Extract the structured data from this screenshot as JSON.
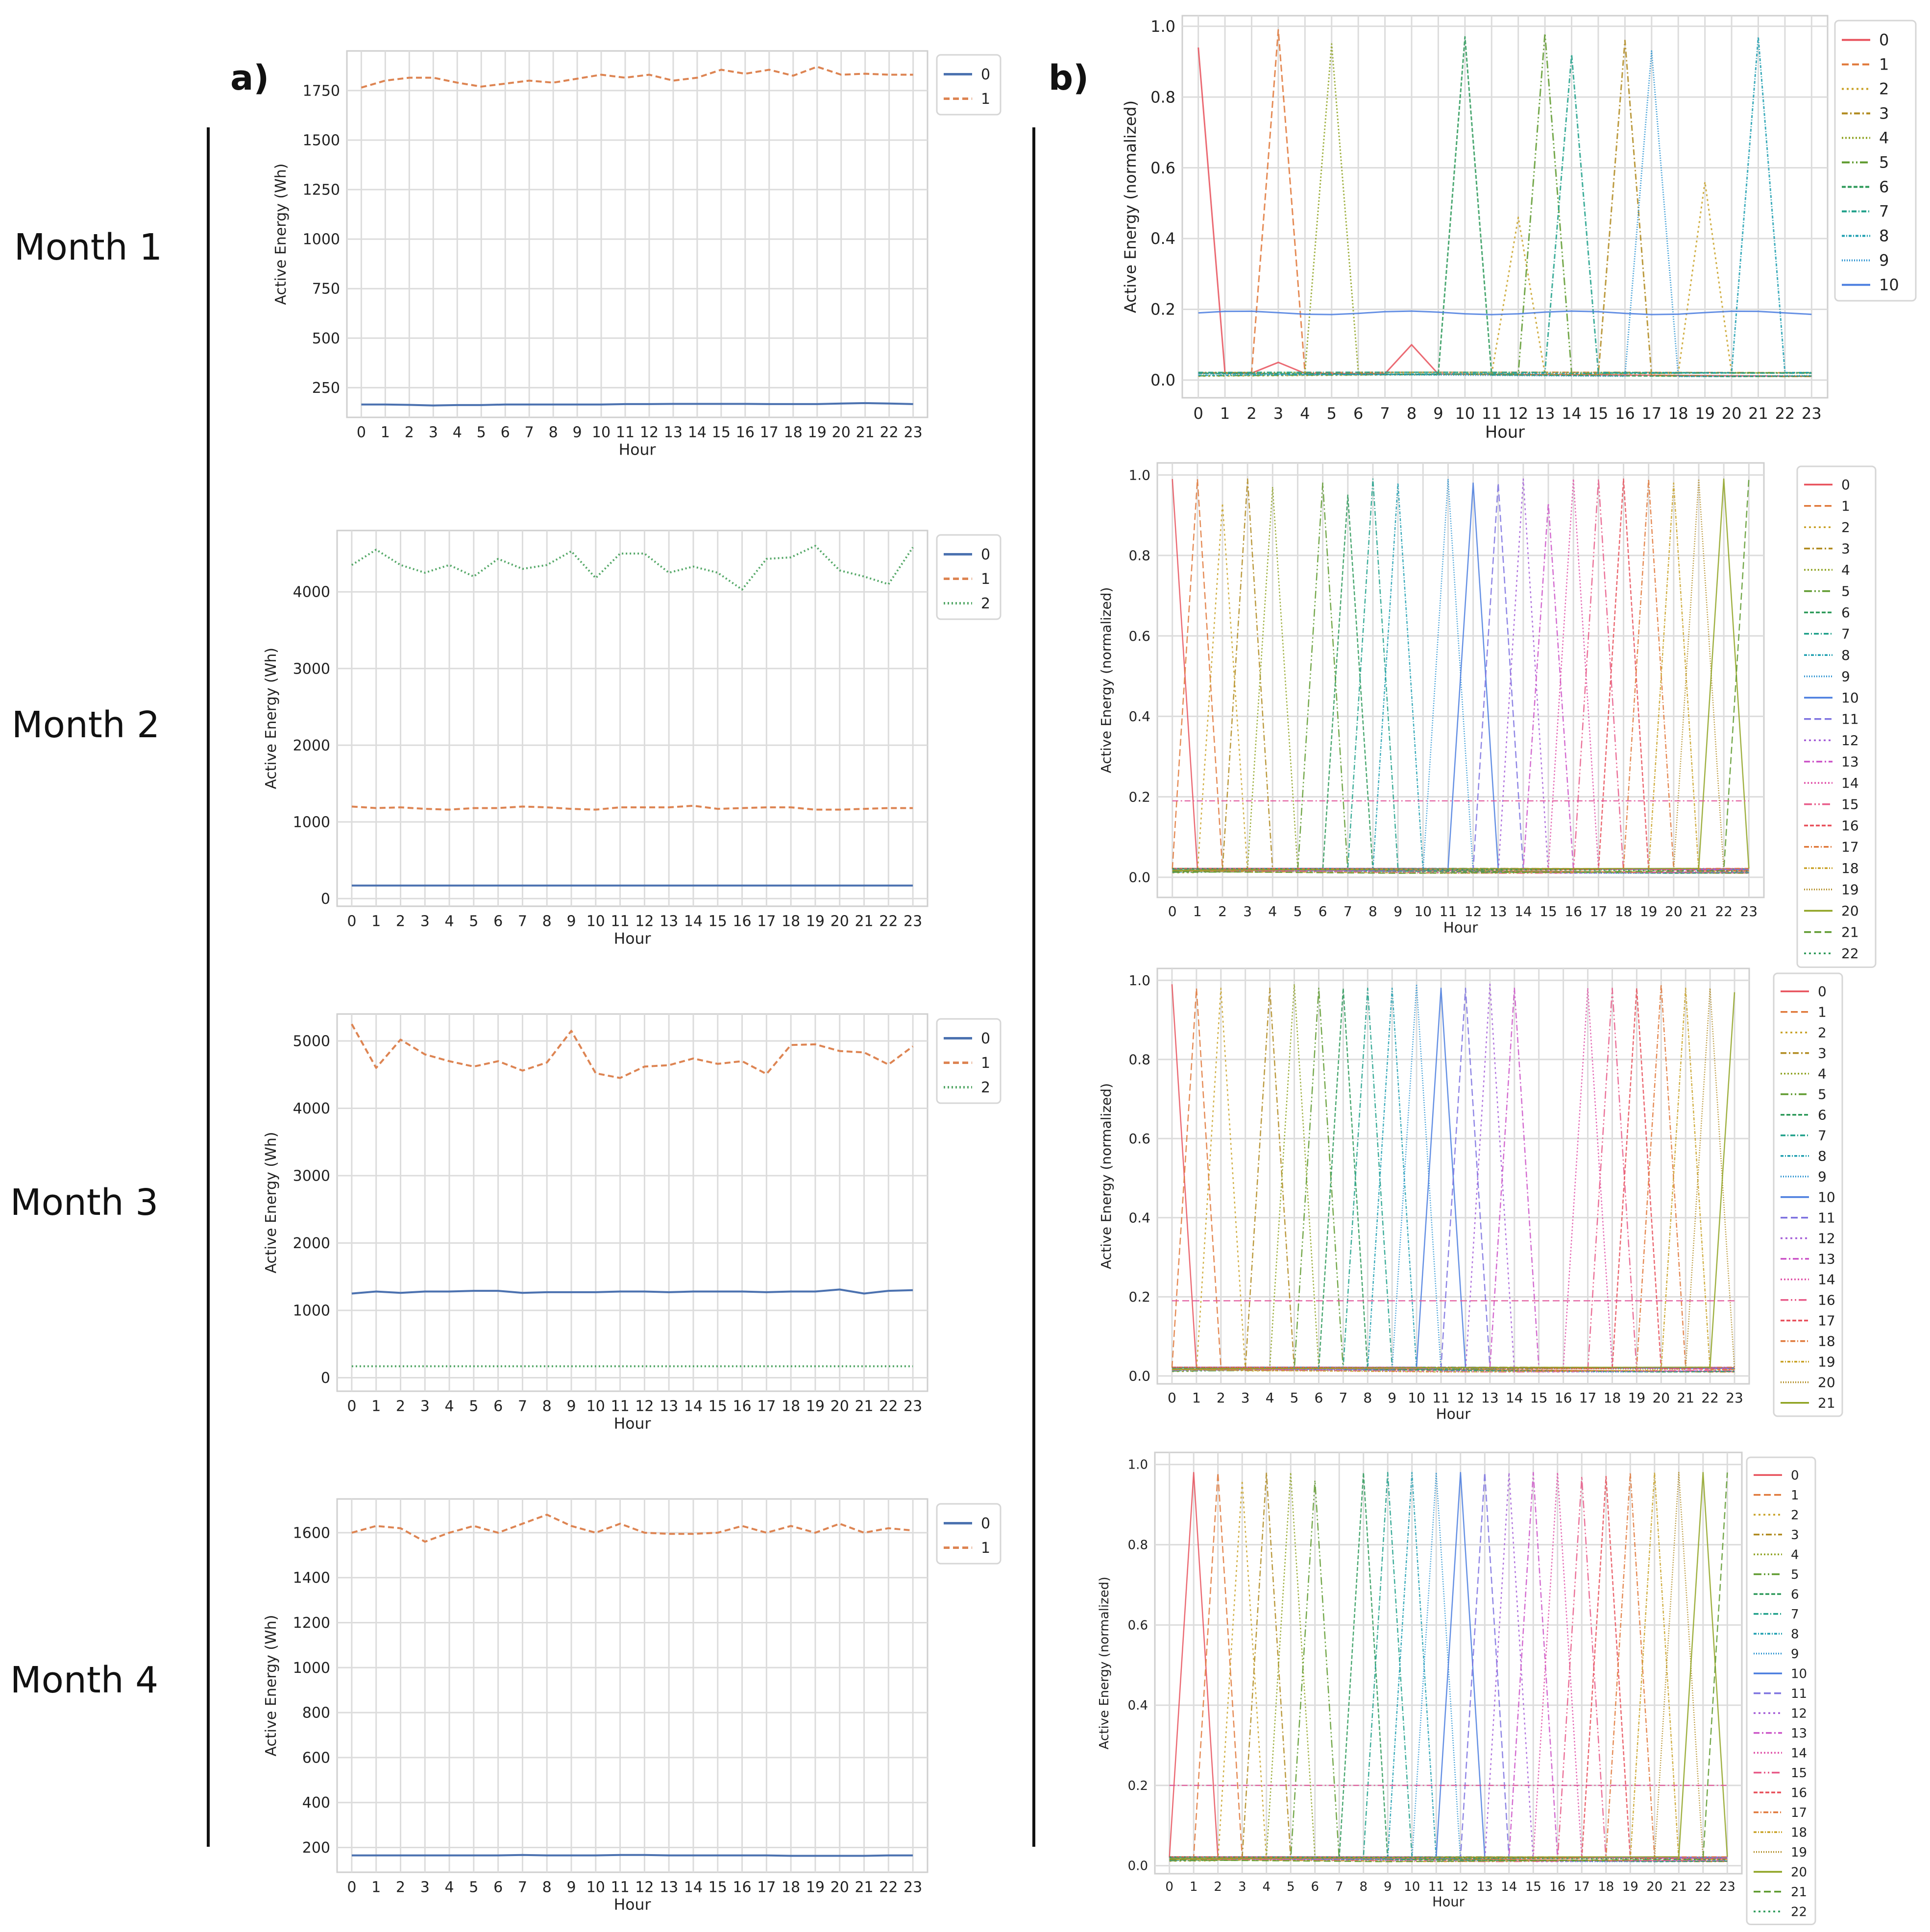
{
  "panel_labels": {
    "a": "a)",
    "b": "b)"
  },
  "months": [
    "Month 1",
    "Month 2",
    "Month 3",
    "Month 4"
  ],
  "palette": [
    "#e8505b",
    "#e0783a",
    "#c9a227",
    "#b08a1e",
    "#8fa322",
    "#5e9a2e",
    "#2e9a5a",
    "#1fa08a",
    "#1e9fb0",
    "#2590d0",
    "#4a7ddf",
    "#7d72e0",
    "#a55ed8",
    "#cc55c8",
    "#e052a8",
    "#e85a88"
  ],
  "chart_data": [
    {
      "id": "a1",
      "type": "line",
      "title": "",
      "xlabel": "Hour",
      "ylabel": "Active Energy (Wh)",
      "x": [
        0,
        1,
        2,
        3,
        4,
        5,
        6,
        7,
        8,
        9,
        10,
        11,
        12,
        13,
        14,
        15,
        16,
        17,
        18,
        19,
        20,
        21,
        22,
        23
      ],
      "ylim": [
        100,
        1950
      ],
      "yticks": [
        250,
        500,
        750,
        1000,
        1250,
        1500,
        1750
      ],
      "grid": true,
      "legend": "right",
      "series": [
        {
          "name": "0",
          "color": "#4c72b0",
          "dash": "",
          "values": [
            165,
            165,
            163,
            160,
            162,
            162,
            165,
            165,
            165,
            165,
            165,
            167,
            167,
            168,
            168,
            168,
            168,
            167,
            167,
            167,
            170,
            172,
            170,
            167
          ]
        },
        {
          "name": "1",
          "color": "#dd8452",
          "dash": "12,7",
          "values": [
            1765,
            1800,
            1815,
            1815,
            1790,
            1770,
            1785,
            1800,
            1790,
            1810,
            1830,
            1815,
            1830,
            1800,
            1815,
            1855,
            1835,
            1855,
            1825,
            1870,
            1830,
            1835,
            1830,
            1830
          ]
        }
      ]
    },
    {
      "id": "a2",
      "type": "line",
      "title": "",
      "xlabel": "Hour",
      "ylabel": "Active Energy (Wh)",
      "x": [
        0,
        1,
        2,
        3,
        4,
        5,
        6,
        7,
        8,
        9,
        10,
        11,
        12,
        13,
        14,
        15,
        16,
        17,
        18,
        19,
        20,
        21,
        22,
        23
      ],
      "ylim": [
        -100,
        4800
      ],
      "yticks": [
        0,
        1000,
        2000,
        3000,
        4000
      ],
      "grid": true,
      "legend": "right",
      "series": [
        {
          "name": "0",
          "color": "#4c72b0",
          "dash": "",
          "values": [
            170,
            170,
            170,
            170,
            170,
            170,
            170,
            170,
            170,
            170,
            170,
            170,
            170,
            170,
            170,
            170,
            170,
            170,
            170,
            170,
            170,
            170,
            170,
            170
          ]
        },
        {
          "name": "1",
          "color": "#dd8452",
          "dash": "12,7",
          "values": [
            1200,
            1180,
            1190,
            1170,
            1160,
            1180,
            1180,
            1200,
            1190,
            1170,
            1160,
            1190,
            1190,
            1190,
            1210,
            1170,
            1180,
            1190,
            1190,
            1160,
            1160,
            1170,
            1180,
            1180
          ]
        },
        {
          "name": "2",
          "color": "#55a868",
          "dash": "3,5",
          "values": [
            4350,
            4550,
            4350,
            4250,
            4350,
            4200,
            4430,
            4300,
            4350,
            4530,
            4180,
            4500,
            4500,
            4250,
            4330,
            4250,
            4030,
            4430,
            4450,
            4600,
            4280,
            4200,
            4100,
            4580
          ]
        }
      ]
    },
    {
      "id": "a3",
      "type": "line",
      "title": "",
      "xlabel": "Hour",
      "ylabel": "Active Energy (Wh)",
      "x": [
        0,
        1,
        2,
        3,
        4,
        5,
        6,
        7,
        8,
        9,
        10,
        11,
        12,
        13,
        14,
        15,
        16,
        17,
        18,
        19,
        20,
        21,
        22,
        23
      ],
      "ylim": [
        -200,
        5400
      ],
      "yticks": [
        0,
        1000,
        2000,
        3000,
        4000,
        5000
      ],
      "grid": true,
      "legend": "right",
      "series": [
        {
          "name": "0",
          "color": "#4c72b0",
          "dash": "",
          "values": [
            1250,
            1280,
            1260,
            1280,
            1280,
            1290,
            1290,
            1260,
            1270,
            1270,
            1270,
            1280,
            1280,
            1270,
            1280,
            1280,
            1280,
            1270,
            1280,
            1280,
            1310,
            1250,
            1290,
            1300
          ]
        },
        {
          "name": "1",
          "color": "#dd8452",
          "dash": "12,7",
          "values": [
            5250,
            4600,
            5020,
            4800,
            4700,
            4620,
            4700,
            4560,
            4680,
            5150,
            4520,
            4450,
            4620,
            4640,
            4740,
            4660,
            4700,
            4510,
            4940,
            4950,
            4850,
            4830,
            4650,
            4920
          ]
        },
        {
          "name": "2",
          "color": "#55a868",
          "dash": "3,5",
          "values": [
            170,
            170,
            170,
            170,
            170,
            170,
            170,
            170,
            170,
            170,
            170,
            170,
            170,
            170,
            170,
            170,
            170,
            170,
            170,
            170,
            170,
            170,
            170,
            170
          ]
        }
      ]
    },
    {
      "id": "a4",
      "type": "line",
      "title": "",
      "xlabel": "Hour",
      "ylabel": "Active Energy (Wh)",
      "x": [
        0,
        1,
        2,
        3,
        4,
        5,
        6,
        7,
        8,
        9,
        10,
        11,
        12,
        13,
        14,
        15,
        16,
        17,
        18,
        19,
        20,
        21,
        22,
        23
      ],
      "ylim": [
        90,
        1750
      ],
      "yticks": [
        200,
        400,
        600,
        800,
        1000,
        1200,
        1400,
        1600
      ],
      "grid": true,
      "legend": "right",
      "series": [
        {
          "name": "0",
          "color": "#4c72b0",
          "dash": "",
          "values": [
            165,
            165,
            165,
            165,
            165,
            165,
            165,
            167,
            165,
            165,
            165,
            167,
            167,
            165,
            165,
            165,
            165,
            165,
            163,
            163,
            163,
            163,
            165,
            165
          ]
        },
        {
          "name": "1",
          "color": "#dd8452",
          "dash": "12,7",
          "values": [
            1600,
            1630,
            1620,
            1560,
            1600,
            1630,
            1600,
            1640,
            1680,
            1630,
            1600,
            1640,
            1600,
            1595,
            1595,
            1600,
            1630,
            1600,
            1630,
            1600,
            1640,
            1600,
            1620,
            1610
          ]
        }
      ]
    },
    {
      "id": "b1",
      "type": "line",
      "title": "",
      "xlabel": "Hour",
      "ylabel": "Active Energy (normalized)",
      "x": [
        0,
        1,
        2,
        3,
        4,
        5,
        6,
        7,
        8,
        9,
        10,
        11,
        12,
        13,
        14,
        15,
        16,
        17,
        18,
        19,
        20,
        21,
        22,
        23
      ],
      "ylim": [
        -0.05,
        1.03
      ],
      "yticks": [
        0.0,
        0.2,
        0.4,
        0.6,
        0.8,
        1.0
      ],
      "grid": true,
      "legend": "right",
      "legend_entries": [
        "0",
        "1",
        "2",
        "3",
        "4",
        "5",
        "6",
        "7",
        "8",
        "9",
        "10"
      ],
      "peaks": [
        [
          0.94
        ],
        [
          0.99
        ],
        [
          0.46,
          0.56
        ],
        [
          0.96
        ],
        [
          0.95
        ],
        [
          0.98
        ],
        [
          0.97
        ],
        [
          0.92
        ],
        [
          0.97
        ],
        [
          0.93
        ],
        [
          0.19
        ]
      ],
      "peak_hours": [
        [
          0
        ],
        [
          3
        ],
        [
          12,
          19
        ],
        [
          16
        ],
        [
          5
        ],
        [
          13
        ],
        [
          10
        ],
        [
          14
        ],
        [
          21
        ],
        [
          17
        ],
        []
      ],
      "baseline": 0.01,
      "flat_level": 0.19,
      "flat_series": "10"
    },
    {
      "id": "b2",
      "type": "line",
      "title": "",
      "xlabel": "Hour",
      "ylabel": "Active Energy (normalized)",
      "x": [
        0,
        1,
        2,
        3,
        4,
        5,
        6,
        7,
        8,
        9,
        10,
        11,
        12,
        13,
        14,
        15,
        16,
        17,
        18,
        19,
        20,
        21,
        22,
        23
      ],
      "ylim": [
        -0.05,
        1.03
      ],
      "yticks": [
        0.0,
        0.2,
        0.4,
        0.6,
        0.8,
        1.0
      ],
      "grid": true,
      "legend": "right",
      "legend_entries": [
        "0",
        "1",
        "2",
        "3",
        "4",
        "5",
        "6",
        "7",
        "8",
        "9",
        "10",
        "11",
        "12",
        "13",
        "14",
        "15",
        "16",
        "17",
        "18",
        "19",
        "20",
        "21",
        "22"
      ],
      "peak_hours": [
        0,
        1,
        2,
        3,
        4,
        6,
        7,
        8,
        9,
        11,
        12,
        13,
        14,
        15,
        16,
        17,
        18,
        19,
        20,
        21,
        22,
        23
      ],
      "peak_values": [
        0.99,
        0.99,
        0.93,
        0.99,
        0.97,
        0.98,
        0.95,
        0.99,
        0.98,
        0.99,
        0.98,
        0.98,
        0.99,
        0.93,
        0.99,
        0.99,
        0.99,
        0.99,
        0.98,
        0.99,
        0.99,
        0.99
      ],
      "baseline": 0.01,
      "flat_level": 0.19
    },
    {
      "id": "b3",
      "type": "line",
      "title": "",
      "xlabel": "Hour",
      "ylabel": "Active Energy (normalized)",
      "x": [
        0,
        1,
        2,
        3,
        4,
        5,
        6,
        7,
        8,
        9,
        10,
        11,
        12,
        13,
        14,
        15,
        16,
        17,
        18,
        19,
        20,
        21,
        22,
        23
      ],
      "ylim": [
        -0.02,
        1.03
      ],
      "yticks": [
        0.0,
        0.2,
        0.4,
        0.6,
        0.8,
        1.0
      ],
      "grid": true,
      "legend": "right",
      "legend_entries": [
        "0",
        "1",
        "2",
        "3",
        "4",
        "5",
        "6",
        "7",
        "8",
        "9",
        "10",
        "11",
        "12",
        "13",
        "14",
        "16",
        "17",
        "18",
        "19",
        "20",
        "21"
      ],
      "peak_hours": [
        0,
        1,
        2,
        4,
        5,
        6,
        7,
        8,
        9,
        10,
        11,
        12,
        13,
        14,
        17,
        18,
        19,
        20,
        21,
        22,
        23
      ],
      "peak_values": [
        0.99,
        0.98,
        0.98,
        0.98,
        0.99,
        0.98,
        0.98,
        0.98,
        0.98,
        0.99,
        0.98,
        0.98,
        0.99,
        0.98,
        0.98,
        0.98,
        0.98,
        0.99,
        0.98,
        0.98,
        0.97
      ],
      "baseline": 0.01,
      "flat_level": 0.19
    },
    {
      "id": "b4",
      "type": "line",
      "title": "",
      "xlabel": "Hour",
      "ylabel": "Active Energy (normalized)",
      "x": [
        0,
        1,
        2,
        3,
        4,
        5,
        6,
        7,
        8,
        9,
        10,
        11,
        12,
        13,
        14,
        15,
        16,
        17,
        18,
        19,
        20,
        21,
        22,
        23
      ],
      "ylim": [
        -0.02,
        1.03
      ],
      "yticks": [
        0.0,
        0.2,
        0.4,
        0.6,
        0.8,
        1.0
      ],
      "grid": true,
      "legend": "right",
      "legend_entries": [
        "0",
        "1",
        "2",
        "3",
        "4",
        "5",
        "6",
        "7",
        "8",
        "9",
        "10",
        "11",
        "12",
        "13",
        "14",
        "15",
        "16",
        "17",
        "18",
        "19",
        "20",
        "21",
        "22"
      ],
      "peak_hours": [
        1,
        2,
        3,
        4,
        5,
        6,
        8,
        9,
        10,
        11,
        12,
        13,
        14,
        15,
        16,
        17,
        18,
        19,
        20,
        21,
        22,
        23
      ],
      "peak_values": [
        0.98,
        0.98,
        0.96,
        0.98,
        0.98,
        0.96,
        0.98,
        0.98,
        0.98,
        0.98,
        0.98,
        0.98,
        0.98,
        0.98,
        0.98,
        0.97,
        0.97,
        0.98,
        0.98,
        0.98,
        0.98,
        0.98
      ],
      "baseline": 0.01,
      "flat_level": 0.2
    }
  ]
}
